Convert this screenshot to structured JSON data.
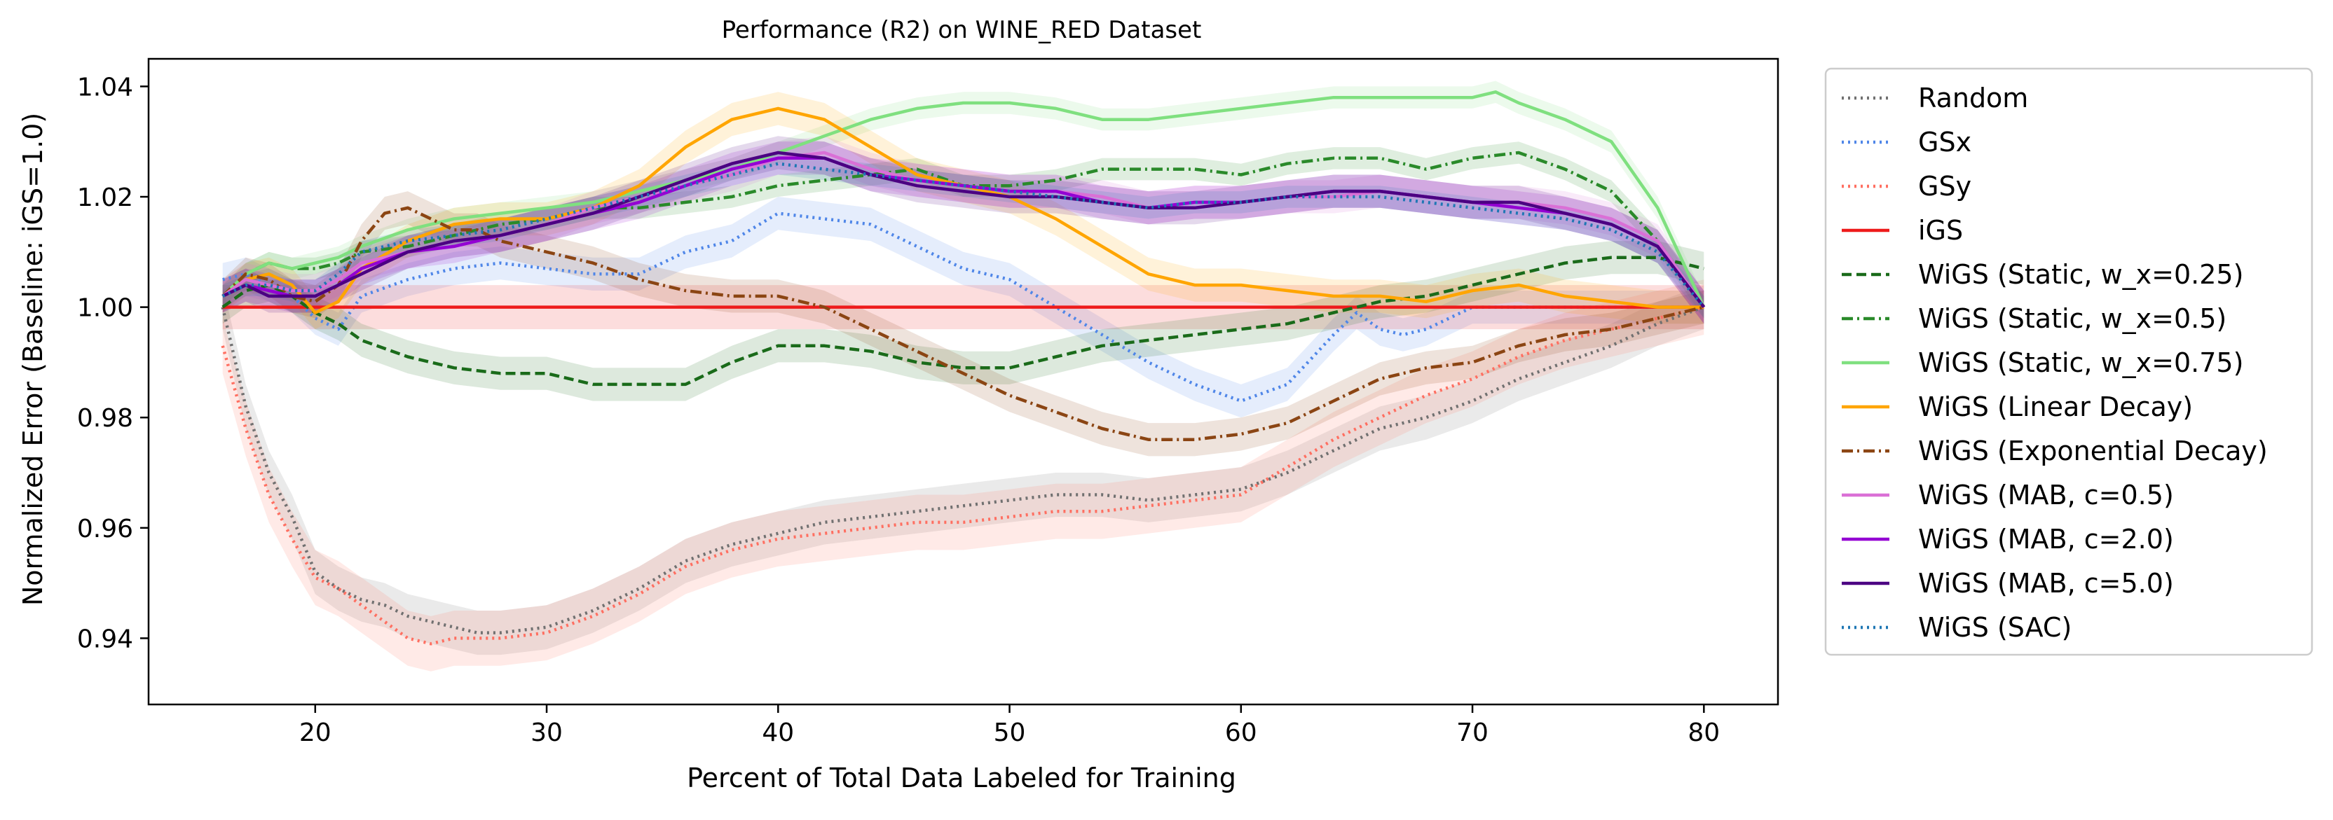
{
  "chart_data": {
    "type": "line",
    "title": "Performance (R2) on WINE_RED Dataset",
    "xlabel": "Percent of Total Data Labeled for Training",
    "ylabel": "Normalized Error (Baseline: iGS=1.0)",
    "xlim": [
      12.8,
      83.2
    ],
    "ylim": [
      0.928,
      1.045
    ],
    "xticks": [
      20,
      30,
      40,
      50,
      60,
      70,
      80
    ],
    "xtick_labels": [
      "20",
      "30",
      "40",
      "50",
      "60",
      "70",
      "80"
    ],
    "yticks": [
      0.94,
      0.96,
      0.98,
      1.0,
      1.02,
      1.04
    ],
    "ytick_labels": [
      "0.94",
      "0.96",
      "0.98",
      "1.00",
      "1.02",
      "1.04"
    ],
    "grid": false,
    "legend_position": "outside-right",
    "shaded_bands": true,
    "series": [
      {
        "name": "Random",
        "color": "#707070",
        "dash": "dotted",
        "x": [
          16,
          17,
          18,
          19,
          20,
          21,
          22,
          23,
          24,
          25,
          26,
          27,
          28,
          30,
          32,
          34,
          36,
          38,
          40,
          42,
          44,
          46,
          48,
          50,
          52,
          54,
          56,
          58,
          60,
          62,
          64,
          66,
          68,
          70,
          72,
          74,
          76,
          78,
          80
        ],
        "y": [
          1.0,
          0.982,
          0.97,
          0.962,
          0.952,
          0.949,
          0.947,
          0.946,
          0.944,
          0.943,
          0.942,
          0.941,
          0.941,
          0.942,
          0.945,
          0.949,
          0.954,
          0.957,
          0.959,
          0.961,
          0.962,
          0.963,
          0.964,
          0.965,
          0.966,
          0.966,
          0.965,
          0.966,
          0.967,
          0.97,
          0.974,
          0.978,
          0.98,
          0.983,
          0.987,
          0.99,
          0.993,
          0.997,
          1.0
        ],
        "band": 0.004
      },
      {
        "name": "GSx",
        "color": "#4f86e8",
        "dash": "dotted",
        "x": [
          16,
          17,
          18,
          19,
          20,
          21,
          22,
          24,
          26,
          28,
          30,
          32,
          34,
          36,
          38,
          40,
          42,
          44,
          46,
          48,
          50,
          52,
          54,
          56,
          58,
          60,
          62,
          64,
          65,
          66,
          67,
          68,
          70,
          72,
          74,
          76,
          78,
          80
        ],
        "y": [
          1.005,
          1.006,
          1.004,
          1.002,
          0.998,
          0.996,
          1.002,
          1.005,
          1.007,
          1.008,
          1.007,
          1.006,
          1.006,
          1.01,
          1.012,
          1.017,
          1.016,
          1.015,
          1.011,
          1.007,
          1.005,
          1.0,
          0.995,
          0.99,
          0.986,
          0.983,
          0.986,
          0.995,
          0.999,
          0.996,
          0.995,
          0.996,
          1.0,
          1.0,
          1.0,
          1.0,
          1.0,
          1.0
        ],
        "band": 0.003
      },
      {
        "name": "GSy",
        "color": "#ff6f61",
        "dash": "dotted",
        "x": [
          16,
          17,
          18,
          19,
          20,
          21,
          22,
          23,
          24,
          25,
          26,
          27,
          28,
          30,
          32,
          34,
          36,
          38,
          40,
          42,
          44,
          46,
          48,
          50,
          52,
          54,
          56,
          58,
          60,
          62,
          64,
          66,
          68,
          70,
          72,
          74,
          76,
          78,
          80
        ],
        "y": [
          0.993,
          0.978,
          0.966,
          0.958,
          0.951,
          0.949,
          0.946,
          0.943,
          0.94,
          0.939,
          0.94,
          0.94,
          0.94,
          0.941,
          0.944,
          0.948,
          0.953,
          0.956,
          0.958,
          0.959,
          0.96,
          0.961,
          0.961,
          0.962,
          0.963,
          0.963,
          0.964,
          0.965,
          0.966,
          0.971,
          0.976,
          0.98,
          0.984,
          0.987,
          0.991,
          0.994,
          0.996,
          0.998,
          1.0
        ],
        "band": 0.005
      },
      {
        "name": "iGS",
        "color": "#ee1b1b",
        "dash": "solid",
        "x": [
          16,
          80
        ],
        "y": [
          1.0,
          1.0
        ],
        "band": 0.004
      },
      {
        "name": "WiGS (Static, w_x=0.25)",
        "color": "#1a6b1a",
        "dash": "dashed",
        "x": [
          16,
          17,
          18,
          19,
          20,
          21,
          22,
          24,
          26,
          28,
          30,
          32,
          34,
          36,
          38,
          40,
          42,
          44,
          46,
          48,
          50,
          52,
          54,
          56,
          58,
          60,
          62,
          64,
          66,
          68,
          70,
          72,
          74,
          76,
          78,
          80
        ],
        "y": [
          1.0,
          1.003,
          1.004,
          1.002,
          0.999,
          0.997,
          0.994,
          0.991,
          0.989,
          0.988,
          0.988,
          0.986,
          0.986,
          0.986,
          0.99,
          0.993,
          0.993,
          0.992,
          0.99,
          0.989,
          0.989,
          0.991,
          0.993,
          0.994,
          0.995,
          0.996,
          0.997,
          0.999,
          1.001,
          1.002,
          1.004,
          1.006,
          1.008,
          1.009,
          1.009,
          1.007
        ],
        "band": 0.003
      },
      {
        "name": "WiGS (Static, w_x=0.5)",
        "color": "#2a8a2a",
        "dash": "dashdot",
        "x": [
          16,
          17,
          18,
          19,
          20,
          21,
          22,
          24,
          26,
          28,
          30,
          32,
          34,
          36,
          38,
          40,
          42,
          44,
          46,
          48,
          50,
          52,
          54,
          56,
          58,
          60,
          62,
          64,
          66,
          68,
          70,
          72,
          74,
          76,
          78,
          80
        ],
        "y": [
          1.002,
          1.006,
          1.008,
          1.007,
          1.007,
          1.008,
          1.01,
          1.011,
          1.013,
          1.015,
          1.016,
          1.018,
          1.018,
          1.019,
          1.02,
          1.022,
          1.023,
          1.024,
          1.025,
          1.022,
          1.022,
          1.023,
          1.025,
          1.025,
          1.025,
          1.024,
          1.026,
          1.027,
          1.027,
          1.025,
          1.027,
          1.028,
          1.025,
          1.021,
          1.012,
          1.0
        ],
        "band": 0.002
      },
      {
        "name": "WiGS (Static, w_x=0.75)",
        "color": "#7fe07f",
        "dash": "solid",
        "x": [
          16,
          17,
          18,
          19,
          20,
          21,
          22,
          24,
          26,
          28,
          30,
          32,
          34,
          36,
          38,
          40,
          42,
          44,
          46,
          48,
          50,
          52,
          54,
          56,
          58,
          60,
          62,
          64,
          66,
          68,
          70,
          71,
          72,
          74,
          76,
          78,
          80
        ],
        "y": [
          1.002,
          1.006,
          1.008,
          1.007,
          1.008,
          1.009,
          1.011,
          1.014,
          1.016,
          1.017,
          1.018,
          1.019,
          1.021,
          1.023,
          1.025,
          1.028,
          1.031,
          1.034,
          1.036,
          1.037,
          1.037,
          1.036,
          1.034,
          1.034,
          1.035,
          1.036,
          1.037,
          1.038,
          1.038,
          1.038,
          1.038,
          1.039,
          1.037,
          1.034,
          1.03,
          1.018,
          1.0
        ],
        "band": 0.002
      },
      {
        "name": "WiGS (Linear Decay)",
        "color": "#ffa500",
        "dash": "solid",
        "x": [
          16,
          17,
          18,
          19,
          20,
          21,
          22,
          24,
          26,
          28,
          30,
          32,
          34,
          36,
          38,
          40,
          42,
          44,
          46,
          48,
          50,
          52,
          54,
          56,
          58,
          60,
          62,
          64,
          66,
          68,
          70,
          72,
          74,
          76,
          78,
          80
        ],
        "y": [
          1.002,
          1.005,
          1.006,
          1.004,
          0.999,
          1.001,
          1.007,
          1.012,
          1.015,
          1.016,
          1.016,
          1.018,
          1.022,
          1.029,
          1.034,
          1.036,
          1.034,
          1.029,
          1.024,
          1.022,
          1.02,
          1.016,
          1.011,
          1.006,
          1.004,
          1.004,
          1.003,
          1.002,
          1.002,
          1.001,
          1.003,
          1.004,
          1.002,
          1.001,
          1.0,
          1.0
        ],
        "band": 0.003
      },
      {
        "name": "WiGS (Exponential Decay)",
        "color": "#8b4513",
        "dash": "dashdot",
        "x": [
          16,
          17,
          18,
          19,
          20,
          21,
          22,
          23,
          24,
          25,
          26,
          27,
          28,
          30,
          32,
          34,
          36,
          38,
          40,
          42,
          44,
          46,
          48,
          50,
          52,
          54,
          56,
          58,
          60,
          62,
          64,
          66,
          68,
          70,
          72,
          74,
          76,
          78,
          80
        ],
        "y": [
          1.002,
          1.006,
          1.005,
          1.002,
          1.001,
          1.004,
          1.012,
          1.017,
          1.018,
          1.016,
          1.014,
          1.014,
          1.012,
          1.01,
          1.008,
          1.005,
          1.003,
          1.002,
          1.002,
          1.0,
          0.996,
          0.992,
          0.988,
          0.984,
          0.981,
          0.978,
          0.976,
          0.976,
          0.977,
          0.979,
          0.983,
          0.987,
          0.989,
          0.99,
          0.993,
          0.995,
          0.996,
          0.998,
          1.0
        ],
        "band": 0.003
      },
      {
        "name": "WiGS (MAB, c=0.5)",
        "color": "#da70d6",
        "dash": "solid",
        "x": [
          16,
          17,
          18,
          19,
          20,
          21,
          22,
          24,
          26,
          28,
          30,
          32,
          34,
          36,
          38,
          40,
          42,
          44,
          46,
          48,
          50,
          52,
          54,
          56,
          58,
          60,
          62,
          64,
          66,
          68,
          70,
          72,
          74,
          76,
          78,
          80
        ],
        "y": [
          1.002,
          1.005,
          1.004,
          1.003,
          1.003,
          1.005,
          1.008,
          1.01,
          1.012,
          1.013,
          1.015,
          1.018,
          1.02,
          1.022,
          1.024,
          1.027,
          1.028,
          1.025,
          1.023,
          1.022,
          1.021,
          1.021,
          1.02,
          1.018,
          1.019,
          1.019,
          1.02,
          1.02,
          1.021,
          1.02,
          1.019,
          1.019,
          1.018,
          1.016,
          1.012,
          1.0
        ],
        "band": 0.003
      },
      {
        "name": "WiGS (MAB, c=2.0)",
        "color": "#9400d3",
        "dash": "solid",
        "x": [
          16,
          17,
          18,
          19,
          20,
          21,
          22,
          24,
          26,
          28,
          30,
          32,
          34,
          36,
          38,
          40,
          42,
          44,
          46,
          48,
          50,
          52,
          54,
          56,
          58,
          60,
          62,
          64,
          66,
          68,
          70,
          72,
          74,
          76,
          78,
          80
        ],
        "y": [
          1.002,
          1.004,
          1.003,
          1.002,
          1.002,
          1.004,
          1.007,
          1.01,
          1.011,
          1.013,
          1.015,
          1.017,
          1.019,
          1.022,
          1.025,
          1.027,
          1.027,
          1.024,
          1.023,
          1.022,
          1.021,
          1.021,
          1.019,
          1.018,
          1.019,
          1.019,
          1.02,
          1.021,
          1.021,
          1.02,
          1.019,
          1.018,
          1.017,
          1.015,
          1.011,
          1.0
        ],
        "band": 0.003
      },
      {
        "name": "WiGS (MAB, c=5.0)",
        "color": "#4b0082",
        "dash": "solid",
        "x": [
          16,
          17,
          18,
          19,
          20,
          21,
          22,
          24,
          26,
          28,
          30,
          32,
          34,
          36,
          38,
          40,
          42,
          44,
          46,
          48,
          50,
          52,
          54,
          56,
          58,
          60,
          62,
          64,
          66,
          68,
          70,
          72,
          74,
          76,
          78,
          80
        ],
        "y": [
          1.002,
          1.004,
          1.002,
          1.002,
          1.002,
          1.004,
          1.006,
          1.01,
          1.012,
          1.013,
          1.015,
          1.017,
          1.02,
          1.023,
          1.026,
          1.028,
          1.027,
          1.024,
          1.022,
          1.021,
          1.02,
          1.02,
          1.019,
          1.018,
          1.018,
          1.019,
          1.02,
          1.021,
          1.021,
          1.02,
          1.019,
          1.019,
          1.017,
          1.015,
          1.011,
          1.0
        ],
        "band": 0.003
      },
      {
        "name": "WiGS (SAC)",
        "color": "#1f77b4",
        "dash": "dotted",
        "x": [
          16,
          17,
          18,
          19,
          20,
          21,
          22,
          24,
          26,
          28,
          30,
          32,
          34,
          36,
          38,
          40,
          42,
          44,
          46,
          48,
          50,
          52,
          54,
          56,
          58,
          60,
          62,
          64,
          66,
          68,
          70,
          72,
          74,
          76,
          78,
          80
        ],
        "y": [
          1.002,
          1.004,
          1.004,
          1.003,
          1.003,
          1.006,
          1.01,
          1.012,
          1.013,
          1.014,
          1.016,
          1.018,
          1.02,
          1.022,
          1.024,
          1.026,
          1.025,
          1.024,
          1.023,
          1.022,
          1.021,
          1.02,
          1.019,
          1.018,
          1.019,
          1.019,
          1.02,
          1.02,
          1.02,
          1.019,
          1.018,
          1.017,
          1.016,
          1.014,
          1.01,
          1.0
        ],
        "band": 0.002
      }
    ]
  }
}
